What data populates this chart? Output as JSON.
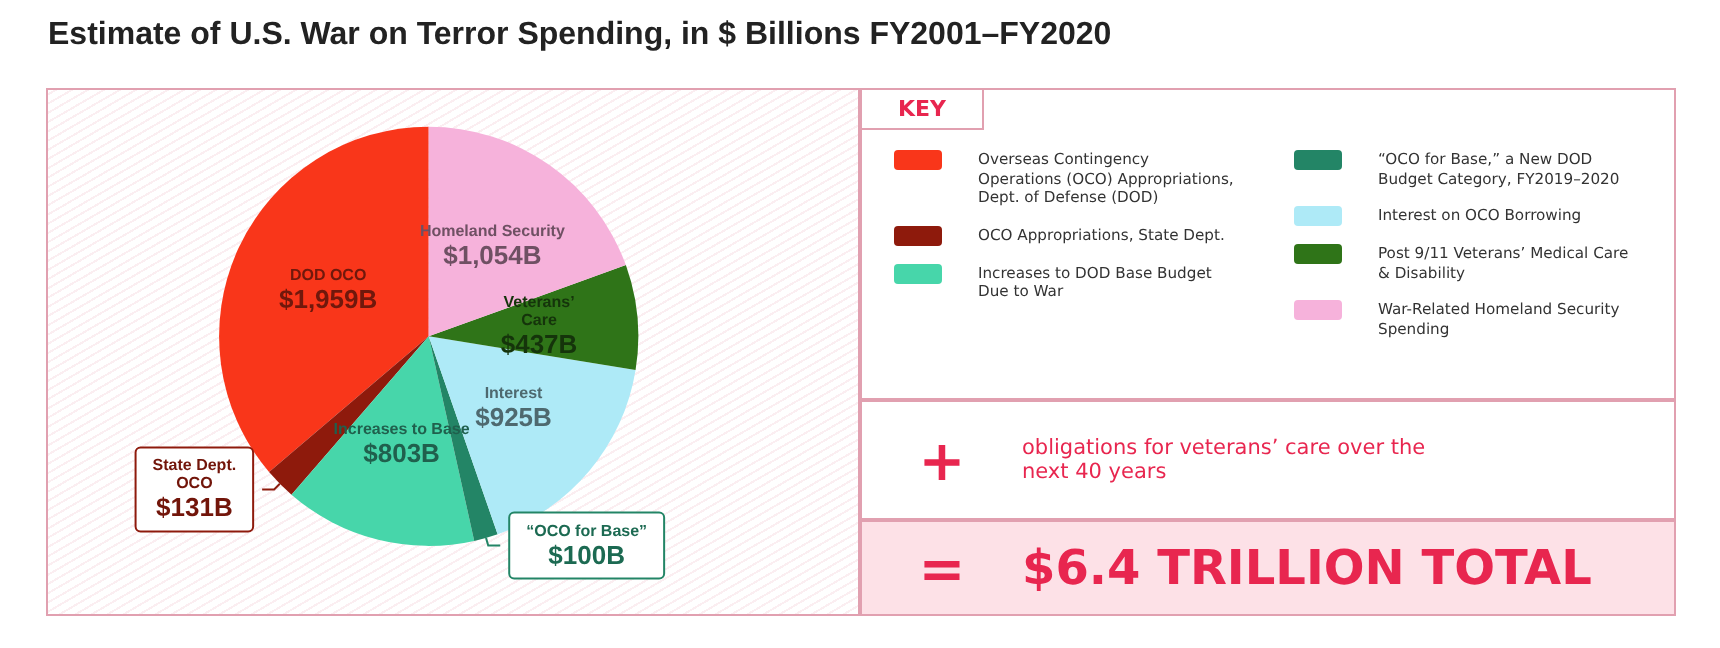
{
  "chart_data": {
    "type": "pie",
    "title": "Estimate of U.S. War on Terror Spending, in $ Billions FY2001–FY2020",
    "categories": [
      "Overseas Contingency Operations (OCO) Appropriations, Dept. of Defense (DOD)",
      "OCO Appropriations, State Dept.",
      "Increases to DOD Base Budget Due to War",
      "“OCO for Base,” a New DOD Budget Category, FY2019–2020",
      "Interest on OCO Borrowing",
      "Post 9/11 Veterans’ Medical Care & Disability",
      "War-Related Homeland Security Spending"
    ],
    "values": [
      1959,
      131,
      803,
      100,
      925,
      437,
      1054
    ],
    "colors": [
      "#f9361a",
      "#8e1a0c",
      "#47d6aa",
      "#238566",
      "#aeeaf7",
      "#2f7418",
      "#f6b2db"
    ],
    "value_labels": [
      "DOD OCO\n$1,959B",
      "State Dept.\nOCO\n$131B",
      "Increases to Base\n$803B",
      "“OCO for Base”\n$100B",
      "Interest\n$925B",
      "Veterans’\nCare\n$437B",
      "Homeland Security\n$1,054B"
    ],
    "legend": "right",
    "legend_title": "KEY",
    "annotations": [
      "+ obligations for veterans’ care over the next 40 years",
      "= $6.4 TRILLION TOTAL"
    ]
  }
}
